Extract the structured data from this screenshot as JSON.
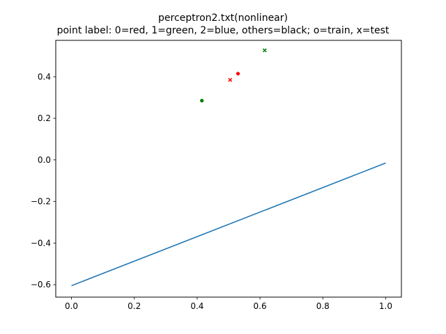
{
  "chart_data": {
    "type": "scatter",
    "title": "perceptron2.txt(nonlinear)",
    "subtitle": "point label: 0=red, 1=green, 2=blue, others=black; o=train, x=test",
    "xlim": [
      -0.05,
      1.05
    ],
    "ylim": [
      -0.66,
      0.575
    ],
    "xticks": [
      0.0,
      0.2,
      0.4,
      0.6,
      0.8,
      1.0
    ],
    "xtick_labels": [
      "0.0",
      "0.2",
      "0.4",
      "0.6",
      "0.8",
      "1.0"
    ],
    "yticks": [
      -0.6,
      -0.4,
      -0.2,
      0.0,
      0.2,
      0.4
    ],
    "ytick_labels": [
      "−0.6",
      "−0.4",
      "−0.2",
      "0.0",
      "0.2",
      "0.4"
    ],
    "grid": false,
    "line": {
      "x": [
        0.0,
        1.0
      ],
      "y": [
        -0.605,
        -0.015
      ],
      "color": "#1f77b4"
    },
    "points": [
      {
        "x": 0.415,
        "y": 0.285,
        "label": 1,
        "marker": "o",
        "set": "train",
        "color": "#007f00"
      },
      {
        "x": 0.53,
        "y": 0.415,
        "label": 0,
        "marker": "o",
        "set": "train",
        "color": "#ff0000"
      },
      {
        "x": 0.505,
        "y": 0.385,
        "label": 0,
        "marker": "x",
        "set": "test",
        "color": "#ff0000"
      },
      {
        "x": 0.615,
        "y": 0.527,
        "label": 1,
        "marker": "x",
        "set": "test",
        "color": "#007f00"
      }
    ]
  }
}
